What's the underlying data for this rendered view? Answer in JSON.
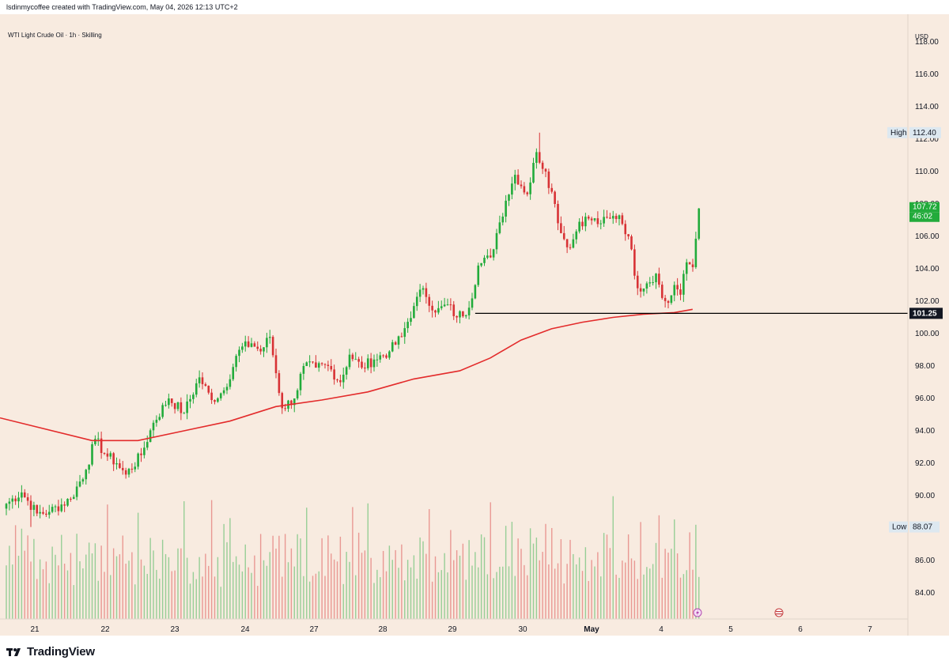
{
  "header": {
    "caption": "lsdinmycoffee created with TradingView.com, May 04, 2026 12:13 UTC+2"
  },
  "legend": {
    "symbol_line": "WTI Light Crude Oil · 1h · Skilling"
  },
  "price_scale": {
    "currency": "USD",
    "tick_labels": [
      "118.00",
      "116.00",
      "114.00",
      "112.00",
      "110.00",
      "108.00",
      "106.00",
      "104.00",
      "102.00",
      "100.00",
      "98.00",
      "96.00",
      "94.00",
      "92.00",
      "90.00",
      "88.00",
      "86.00",
      "84.00"
    ],
    "high_label": "High",
    "high_value": "112.40",
    "low_label": "Low",
    "low_value": "88.07",
    "last_price": "107.72",
    "countdown": "46:02",
    "hline_price": "101.25"
  },
  "time_scale": {
    "tick_labels": [
      "21",
      "22",
      "23",
      "24",
      "27",
      "28",
      "29",
      "30",
      "May",
      "4",
      "5",
      "6",
      "7"
    ]
  },
  "footer": {
    "brand": "TradingView"
  },
  "colors": {
    "background": "#f8ebe0",
    "up": "#22ab3b",
    "down": "#d83235",
    "ma": "#e32b2b",
    "hline": "#000000",
    "scale_text": "#131722",
    "last_price_badge": "#22ab3b"
  },
  "chart_data": {
    "type": "candlestick",
    "title": "WTI Light Crude Oil · 1h · Skilling",
    "ylim": [
      82.5,
      120.0
    ],
    "y_ticks": [
      84,
      86,
      88,
      90,
      92,
      94,
      96,
      98,
      100,
      102,
      104,
      106,
      108,
      110,
      112,
      114,
      116,
      118
    ],
    "x_categories": [
      "21",
      "22",
      "23",
      "24",
      "27",
      "28",
      "29",
      "30",
      "May",
      "4",
      "5",
      "6",
      "7"
    ],
    "anchors": [
      {
        "x": 0,
        "p": 89.5
      },
      {
        "x": 5,
        "p": 90.2
      },
      {
        "x": 10,
        "p": 88.9
      },
      {
        "x": 14,
        "p": 89.0
      },
      {
        "x": 21,
        "p": 89.8
      },
      {
        "x": 26,
        "p": 91.6
      },
      {
        "x": 29,
        "p": 93.5
      },
      {
        "x": 32,
        "p": 92.6
      },
      {
        "x": 36,
        "p": 92.0
      },
      {
        "x": 39,
        "p": 91.3
      },
      {
        "x": 44,
        "p": 92.5
      },
      {
        "x": 48,
        "p": 94.5
      },
      {
        "x": 53,
        "p": 96.0
      },
      {
        "x": 58,
        "p": 95.1
      },
      {
        "x": 63,
        "p": 97.3
      },
      {
        "x": 67,
        "p": 95.9
      },
      {
        "x": 71,
        "p": 96.5
      },
      {
        "x": 76,
        "p": 99.0
      },
      {
        "x": 80,
        "p": 99.4
      },
      {
        "x": 83,
        "p": 98.9
      },
      {
        "x": 86,
        "p": 99.8
      },
      {
        "x": 90,
        "p": 95.4
      },
      {
        "x": 94,
        "p": 96.0
      },
      {
        "x": 97,
        "p": 98.0
      },
      {
        "x": 101,
        "p": 97.9
      },
      {
        "x": 105,
        "p": 98.0
      },
      {
        "x": 109,
        "p": 97.0
      },
      {
        "x": 112,
        "p": 98.7
      },
      {
        "x": 116,
        "p": 97.9
      },
      {
        "x": 120,
        "p": 98.4
      },
      {
        "x": 125,
        "p": 98.9
      },
      {
        "x": 129,
        "p": 99.8
      },
      {
        "x": 133,
        "p": 101.7
      },
      {
        "x": 136,
        "p": 102.8
      },
      {
        "x": 140,
        "p": 101.3
      },
      {
        "x": 144,
        "p": 101.8
      },
      {
        "x": 147,
        "p": 101.0
      },
      {
        "x": 151,
        "p": 101.6
      },
      {
        "x": 154,
        "p": 104.2
      },
      {
        "x": 158,
        "p": 104.7
      },
      {
        "x": 160,
        "p": 106.2
      },
      {
        "x": 163,
        "p": 108.2
      },
      {
        "x": 166,
        "p": 109.8
      },
      {
        "x": 170,
        "p": 108.6
      },
      {
        "x": 173,
        "p": 111.2
      },
      {
        "x": 176,
        "p": 110.0
      },
      {
        "x": 179,
        "p": 108.0
      },
      {
        "x": 181,
        "p": 106.2
      },
      {
        "x": 184,
        "p": 105.3
      },
      {
        "x": 187,
        "p": 106.9
      },
      {
        "x": 190,
        "p": 107.1
      },
      {
        "x": 194,
        "p": 106.8
      },
      {
        "x": 197,
        "p": 107.1
      },
      {
        "x": 200,
        "p": 107.3
      },
      {
        "x": 203,
        "p": 106.0
      },
      {
        "x": 206,
        "p": 102.8
      },
      {
        "x": 209,
        "p": 103.1
      },
      {
        "x": 212,
        "p": 103.7
      },
      {
        "x": 214,
        "p": 102.2
      },
      {
        "x": 216,
        "p": 101.9
      },
      {
        "x": 218,
        "p": 103.0
      },
      {
        "x": 220,
        "p": 102.4
      },
      {
        "x": 222,
        "p": 104.4
      },
      {
        "x": 224,
        "p": 104.1
      },
      {
        "x": 226,
        "p": 107.72
      }
    ],
    "high_bar": 174,
    "low_bar": 8,
    "ma_anchors": [
      {
        "x": 0,
        "p": 94.8
      },
      {
        "x": 30,
        "p": 93.4
      },
      {
        "x": 45,
        "p": 93.4
      },
      {
        "x": 60,
        "p": 94.0
      },
      {
        "x": 75,
        "p": 94.6
      },
      {
        "x": 90,
        "p": 95.5
      },
      {
        "x": 105,
        "p": 95.9
      },
      {
        "x": 120,
        "p": 96.4
      },
      {
        "x": 135,
        "p": 97.2
      },
      {
        "x": 150,
        "p": 97.7
      },
      {
        "x": 160,
        "p": 98.5
      },
      {
        "x": 170,
        "p": 99.6
      },
      {
        "x": 180,
        "p": 100.3
      },
      {
        "x": 190,
        "p": 100.7
      },
      {
        "x": 200,
        "p": 101.0
      },
      {
        "x": 210,
        "p": 101.2
      },
      {
        "x": 220,
        "p": 101.3
      },
      {
        "x": 226,
        "p": 101.5
      }
    ],
    "hline": 101.25,
    "volume_profile": [
      40,
      60,
      35,
      80,
      55,
      70,
      45,
      90,
      50,
      65,
      30,
      75,
      55,
      85,
      40,
      60,
      70,
      50,
      95,
      45
    ]
  }
}
